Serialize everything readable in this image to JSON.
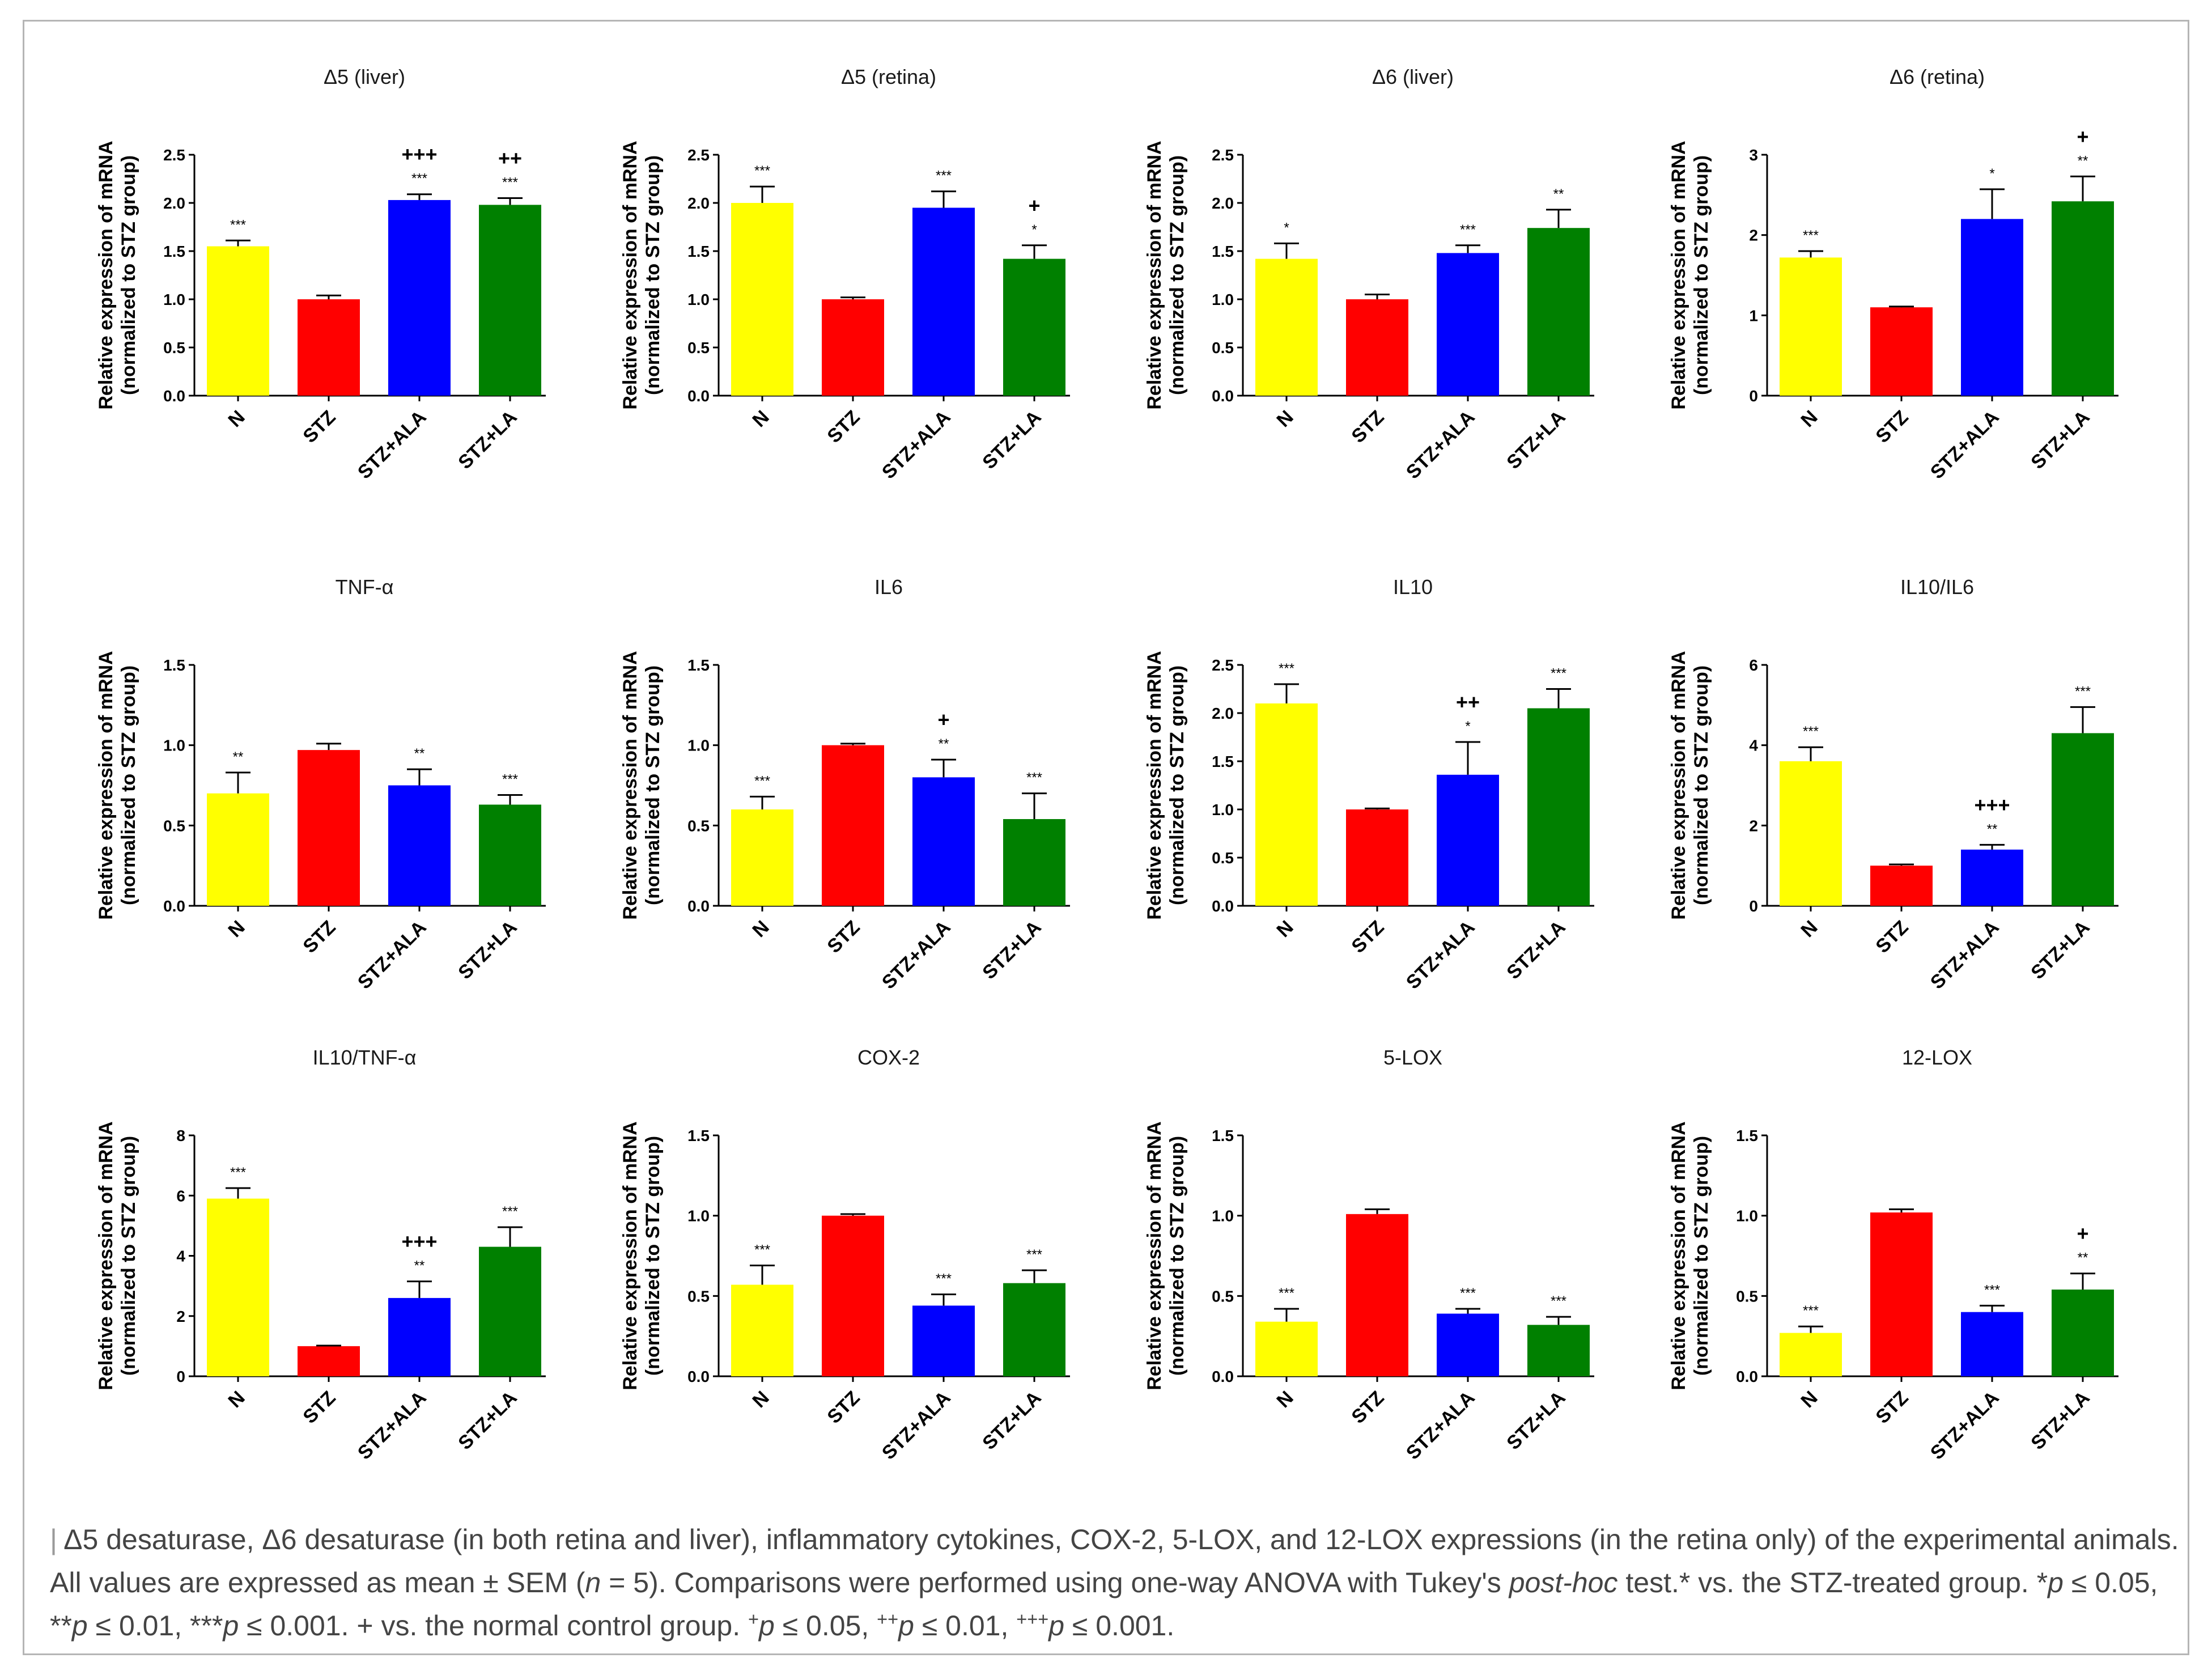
{
  "chart_data": [
    {
      "type": "bar",
      "title": "Δ5 (liver)",
      "ylabel_line1": "Relative expression of mRNA",
      "ylabel_line2": "(normalized to STZ group)",
      "categories": [
        "N",
        "STZ",
        "STZ+ALA",
        "STZ+LA"
      ],
      "values": [
        1.55,
        1.0,
        2.03,
        1.98
      ],
      "errors": [
        0.06,
        0.04,
        0.06,
        0.07
      ],
      "ylim": [
        0,
        2.5
      ],
      "ticks": [
        0,
        0.5,
        1.0,
        1.5,
        2.0,
        2.5
      ],
      "tick_labels": [
        "0.0",
        "0.5",
        "1.0",
        "1.5",
        "2.0",
        "2.5"
      ],
      "sig_stars": [
        "***",
        "",
        "***",
        "***"
      ],
      "sig_plus": [
        "",
        "",
        "+++",
        "++"
      ]
    },
    {
      "type": "bar",
      "title": "Δ5 (retina)",
      "ylabel_line1": "Relative expression of mRNA",
      "ylabel_line2": "(normalized to STZ group)",
      "categories": [
        "N",
        "STZ",
        "STZ+ALA",
        "STZ+LA"
      ],
      "values": [
        2.0,
        1.0,
        1.95,
        1.42
      ],
      "errors": [
        0.17,
        0.02,
        0.17,
        0.14
      ],
      "ylim": [
        0,
        2.5
      ],
      "ticks": [
        0,
        0.5,
        1.0,
        1.5,
        2.0,
        2.5
      ],
      "tick_labels": [
        "0.0",
        "0.5",
        "1.0",
        "1.5",
        "2.0",
        "2.5"
      ],
      "sig_stars": [
        "***",
        "",
        "***",
        "*"
      ],
      "sig_plus": [
        "",
        "",
        "",
        "+"
      ]
    },
    {
      "type": "bar",
      "title": "Δ6 (liver)",
      "ylabel_line1": "Relative expression of mRNA",
      "ylabel_line2": "(normalized to STZ group)",
      "categories": [
        "N",
        "STZ",
        "STZ+ALA",
        "STZ+LA"
      ],
      "values": [
        1.42,
        1.0,
        1.48,
        1.74
      ],
      "errors": [
        0.16,
        0.05,
        0.08,
        0.19
      ],
      "ylim": [
        0,
        2.5
      ],
      "ticks": [
        0,
        0.5,
        1.0,
        1.5,
        2.0,
        2.5
      ],
      "tick_labels": [
        "0.0",
        "0.5",
        "1.0",
        "1.5",
        "2.0",
        "2.5"
      ],
      "sig_stars": [
        "*",
        "",
        "***",
        "**"
      ],
      "sig_plus": [
        "",
        "",
        "",
        ""
      ]
    },
    {
      "type": "bar",
      "title": "Δ6 (retina)",
      "ylabel_line1": "Relative expression of mRNA",
      "ylabel_line2": "(normalized to STZ group)",
      "categories": [
        "N",
        "STZ",
        "STZ+ALA",
        "STZ+LA"
      ],
      "values": [
        1.72,
        1.1,
        2.2,
        2.42
      ],
      "errors": [
        0.08,
        0.01,
        0.37,
        0.31
      ],
      "ylim": [
        0,
        3
      ],
      "ticks": [
        0,
        1,
        2,
        3
      ],
      "tick_labels": [
        "0",
        "1",
        "2",
        "3"
      ],
      "sig_stars": [
        "***",
        "",
        "*",
        "**"
      ],
      "sig_plus": [
        "",
        "",
        "",
        "+"
      ]
    },
    {
      "type": "bar",
      "title": "TNF-α",
      "ylabel_line1": "Relative expression of mRNA",
      "ylabel_line2": "(normalized to STZ group)",
      "categories": [
        "N",
        "STZ",
        "STZ+ALA",
        "STZ+LA"
      ],
      "values": [
        0.7,
        0.97,
        0.75,
        0.63
      ],
      "errors": [
        0.13,
        0.04,
        0.1,
        0.06
      ],
      "ylim": [
        0,
        1.5
      ],
      "ticks": [
        0,
        0.5,
        1.0,
        1.5
      ],
      "tick_labels": [
        "0.0",
        "0.5",
        "1.0",
        "1.5"
      ],
      "sig_stars": [
        "**",
        "",
        "**",
        "***"
      ],
      "sig_plus": [
        "",
        "",
        "",
        ""
      ]
    },
    {
      "type": "bar",
      "title": "IL6",
      "ylabel_line1": "Relative expression of mRNA",
      "ylabel_line2": "(normalized to STZ group)",
      "categories": [
        "N",
        "STZ",
        "STZ+ALA",
        "STZ+LA"
      ],
      "values": [
        0.6,
        1.0,
        0.8,
        0.54
      ],
      "errors": [
        0.08,
        0.01,
        0.11,
        0.16
      ],
      "ylim": [
        0,
        1.5
      ],
      "ticks": [
        0,
        0.5,
        1.0,
        1.5
      ],
      "tick_labels": [
        "0.0",
        "0.5",
        "1.0",
        "1.5"
      ],
      "sig_stars": [
        "***",
        "",
        "**",
        "***"
      ],
      "sig_plus": [
        "",
        "",
        "+",
        ""
      ]
    },
    {
      "type": "bar",
      "title": "IL10",
      "ylabel_line1": "Relative expression of mRNA",
      "ylabel_line2": "(normalized to STZ group)",
      "categories": [
        "N",
        "STZ",
        "STZ+ALA",
        "STZ+LA"
      ],
      "values": [
        2.1,
        1.0,
        1.36,
        2.05
      ],
      "errors": [
        0.2,
        0.01,
        0.34,
        0.2
      ],
      "ylim": [
        0,
        2.5
      ],
      "ticks": [
        0,
        0.5,
        1.0,
        1.5,
        2.0,
        2.5
      ],
      "tick_labels": [
        "0.0",
        "0.5",
        "1.0",
        "1.5",
        "2.0",
        "2.5"
      ],
      "sig_stars": [
        "***",
        "",
        "*",
        "***"
      ],
      "sig_plus": [
        "",
        "",
        "++",
        ""
      ]
    },
    {
      "type": "bar",
      "title": "IL10/IL6",
      "ylabel_line1": "Relative expression of mRNA",
      "ylabel_line2": "(normalized to STZ group)",
      "categories": [
        "N",
        "STZ",
        "STZ+ALA",
        "STZ+LA"
      ],
      "values": [
        3.6,
        1.0,
        1.4,
        4.3
      ],
      "errors": [
        0.35,
        0.03,
        0.12,
        0.65
      ],
      "ylim": [
        0,
        6
      ],
      "ticks": [
        0,
        2,
        4,
        6
      ],
      "tick_labels": [
        "0",
        "2",
        "4",
        "6"
      ],
      "sig_stars": [
        "***",
        "",
        "**",
        "***"
      ],
      "sig_plus": [
        "",
        "",
        "+++",
        ""
      ]
    },
    {
      "type": "bar",
      "title": "IL10/TNF-α",
      "ylabel_line1": "Relative expression of mRNA",
      "ylabel_line2": "(normalized to STZ group)",
      "categories": [
        "N",
        "STZ",
        "STZ+ALA",
        "STZ+LA"
      ],
      "values": [
        5.9,
        1.0,
        2.6,
        4.3
      ],
      "errors": [
        0.35,
        0.02,
        0.55,
        0.65
      ],
      "ylim": [
        0,
        8
      ],
      "ticks": [
        0,
        2,
        4,
        6,
        8
      ],
      "tick_labels": [
        "0",
        "2",
        "4",
        "6",
        "8"
      ],
      "sig_stars": [
        "***",
        "",
        "**",
        "***"
      ],
      "sig_plus": [
        "",
        "",
        "+++",
        ""
      ]
    },
    {
      "type": "bar",
      "title": "COX-2",
      "ylabel_line1": "Relative expression of mRNA",
      "ylabel_line2": "(normalized to STZ group)",
      "categories": [
        "N",
        "STZ",
        "STZ+ALA",
        "STZ+LA"
      ],
      "values": [
        0.57,
        1.0,
        0.44,
        0.58
      ],
      "errors": [
        0.12,
        0.01,
        0.07,
        0.08
      ],
      "ylim": [
        0,
        1.5
      ],
      "ticks": [
        0,
        0.5,
        1.0,
        1.5
      ],
      "tick_labels": [
        "0.0",
        "0.5",
        "1.0",
        "1.5"
      ],
      "sig_stars": [
        "***",
        "",
        "***",
        "***"
      ],
      "sig_plus": [
        "",
        "",
        "",
        ""
      ]
    },
    {
      "type": "bar",
      "title": "5-LOX",
      "ylabel_line1": "Relative expression of mRNA",
      "ylabel_line2": "(normalized to STZ group)",
      "categories": [
        "N",
        "STZ",
        "STZ+ALA",
        "STZ+LA"
      ],
      "values": [
        0.34,
        1.01,
        0.39,
        0.32
      ],
      "errors": [
        0.08,
        0.03,
        0.03,
        0.05
      ],
      "ylim": [
        0,
        1.5
      ],
      "ticks": [
        0,
        0.5,
        1.0,
        1.5
      ],
      "tick_labels": [
        "0.0",
        "0.5",
        "1.0",
        "1.5"
      ],
      "sig_stars": [
        "***",
        "",
        "***",
        "***"
      ],
      "sig_plus": [
        "",
        "",
        "",
        ""
      ]
    },
    {
      "type": "bar",
      "title": "12-LOX",
      "ylabel_line1": "Relative expression of mRNA",
      "ylabel_line2": "(normalized to STZ group)",
      "categories": [
        "N",
        "STZ",
        "STZ+ALA",
        "STZ+LA"
      ],
      "values": [
        0.27,
        1.02,
        0.4,
        0.54
      ],
      "errors": [
        0.04,
        0.02,
        0.04,
        0.1
      ],
      "ylim": [
        0,
        1.5
      ],
      "ticks": [
        0,
        0.5,
        1.0,
        1.5
      ],
      "tick_labels": [
        "0.0",
        "0.5",
        "1.0",
        "1.5"
      ],
      "sig_stars": [
        "***",
        "",
        "***",
        "**"
      ],
      "sig_plus": [
        "",
        "",
        "",
        "+"
      ]
    }
  ],
  "colors": {
    "N": "#ffff00",
    "STZ": "#ff0000",
    "STZ+ALA": "#0000ff",
    "STZ+LA": "#008000",
    "axis": "#000000"
  },
  "caption": {
    "mark": "|",
    "text_1": " Δ5 desaturase, Δ6 desaturase (in both retina and liver), inflammatory cytokines, COX-2, 5-LOX, and 12-LOX expressions (in the retina only) of the experimental animals. All values are expressed as mean ± SEM (",
    "n_symbol": "n",
    "text_2": " = 5). Comparisons were performed using one-way ANOVA with Tukey's ",
    "post_hoc": "post-hoc",
    "text_3": " test.* vs. the STZ-treated group. *",
    "p1": "p",
    "text_4": " ≤ 0.05, **",
    "p2": "p",
    "text_5": " ≤ 0.01, ***",
    "p3": "p",
    "text_6": " ≤ 0.001. + vs. the normal control group. ",
    "sup1": "+",
    "p4": "p",
    "text_7": " ≤ 0.05, ",
    "sup2": "++",
    "p5": "p",
    "text_8": " ≤ 0.01, ",
    "sup3": "+++",
    "p6": "p",
    "text_9": " ≤ 0.001."
  }
}
